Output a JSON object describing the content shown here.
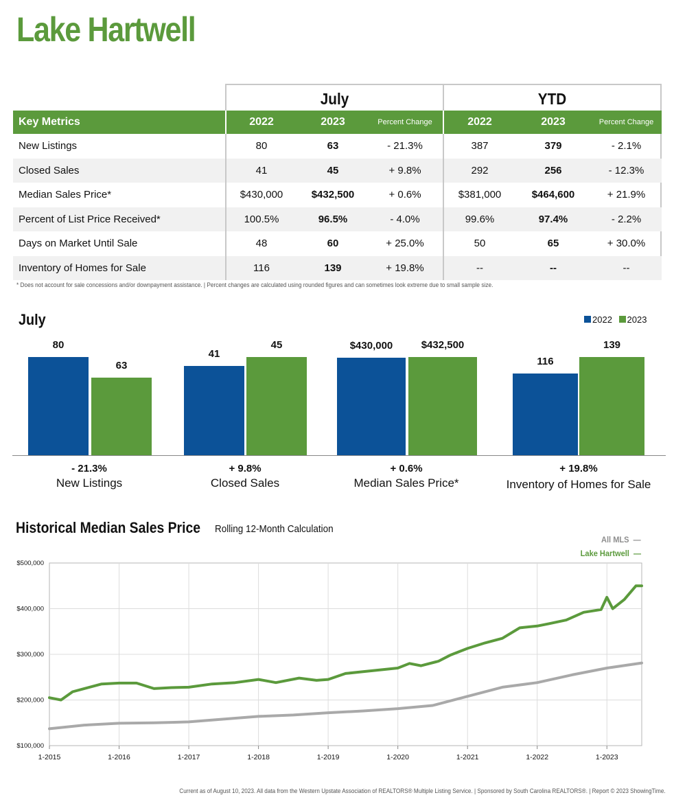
{
  "title": "Lake Hartwell",
  "table": {
    "group_july": "July",
    "group_ytd": "YTD",
    "key_metrics_label": "Key Metrics",
    "col_2022": "2022",
    "col_2023": "2023",
    "col_pct": "Percent Change",
    "rows": [
      {
        "metric": "New Listings",
        "j22": "80",
        "j23": "63",
        "jpct": "- 21.3%",
        "y22": "387",
        "y23": "379",
        "ypct": "- 2.1%"
      },
      {
        "metric": "Closed Sales",
        "j22": "41",
        "j23": "45",
        "jpct": "+ 9.8%",
        "y22": "292",
        "y23": "256",
        "ypct": "- 12.3%"
      },
      {
        "metric": "Median Sales Price*",
        "j22": "$430,000",
        "j23": "$432,500",
        "jpct": "+ 0.6%",
        "y22": "$381,000",
        "y23": "$464,600",
        "ypct": "+ 21.9%"
      },
      {
        "metric": "Percent of List Price Received*",
        "j22": "100.5%",
        "j23": "96.5%",
        "jpct": "- 4.0%",
        "y22": "99.6%",
        "y23": "97.4%",
        "ypct": "- 2.2%"
      },
      {
        "metric": "Days on Market Until Sale",
        "j22": "48",
        "j23": "60",
        "jpct": "+ 25.0%",
        "y22": "50",
        "y23": "65",
        "ypct": "+ 30.0%"
      },
      {
        "metric": "Inventory of Homes for Sale",
        "j22": "116",
        "j23": "139",
        "jpct": "+ 19.8%",
        "y22": "--",
        "y23": "--",
        "ypct": "--"
      }
    ],
    "footnote": "* Does not account for sale concessions and/or downpayment assistance.  |  Percent changes are calculated using rounded figures and can sometimes look extreme due to small sample size."
  },
  "chart_data": [
    {
      "type": "bar",
      "title": "July",
      "legend": [
        "2022",
        "2023"
      ],
      "legend_position": "top-right",
      "colors": {
        "2022": "#0c5298",
        "2023": "#5b9a3c"
      },
      "categories": [
        "New Listings",
        "Closed Sales",
        "Median Sales Price*",
        "Inventory of Homes for Sale"
      ],
      "pct_changes": [
        "- 21.3%",
        "+ 9.8%",
        "+ 0.6%",
        "+ 19.8%"
      ],
      "series": [
        {
          "name": "2022",
          "values": [
            80,
            41,
            430000,
            116
          ],
          "labels": [
            "80",
            "41",
            "$430,000",
            "116"
          ]
        },
        {
          "name": "2023",
          "values": [
            63,
            45,
            432500,
            139
          ],
          "labels": [
            "63",
            "45",
            "$432,500",
            "139"
          ]
        }
      ]
    },
    {
      "type": "line",
      "title": "Historical Median Sales Price",
      "subtitle": "Rolling 12-Month Calculation",
      "x_tick_labels": [
        "1-2015",
        "1-2016",
        "1-2017",
        "1-2018",
        "1-2019",
        "1-2020",
        "1-2021",
        "1-2022",
        "1-2023"
      ],
      "y_tick_labels": [
        "$100,000",
        "$200,000",
        "$300,000",
        "$400,000",
        "$500,000"
      ],
      "ylim": [
        100000,
        500000
      ],
      "xlim": [
        "2015-01",
        "2023-07"
      ],
      "legend_position": "top-right",
      "grid": true,
      "series": [
        {
          "name": "All MLS",
          "color": "#a9a9a9",
          "points": [
            [
              "2015-01",
              137000
            ],
            [
              "2015-07",
              145000
            ],
            [
              "2016-01",
              149000
            ],
            [
              "2016-07",
              150000
            ],
            [
              "2017-01",
              152000
            ],
            [
              "2017-07",
              158000
            ],
            [
              "2018-01",
              164000
            ],
            [
              "2018-07",
              167000
            ],
            [
              "2019-01",
              172000
            ],
            [
              "2019-07",
              176000
            ],
            [
              "2020-01",
              181000
            ],
            [
              "2020-07",
              188000
            ],
            [
              "2021-01",
              208000
            ],
            [
              "2021-07",
              228000
            ],
            [
              "2022-01",
              238000
            ],
            [
              "2022-07",
              255000
            ],
            [
              "2023-01",
              270000
            ],
            [
              "2023-07",
              281000
            ]
          ]
        },
        {
          "name": "Lake Hartwell",
          "color": "#5b9a3c",
          "points": [
            [
              "2015-01",
              205000
            ],
            [
              "2015-03",
              200000
            ],
            [
              "2015-05",
              218000
            ],
            [
              "2015-07",
              225000
            ],
            [
              "2015-10",
              235000
            ],
            [
              "2016-01",
              237000
            ],
            [
              "2016-04",
              237000
            ],
            [
              "2016-07",
              225000
            ],
            [
              "2016-10",
              227000
            ],
            [
              "2017-01",
              228000
            ],
            [
              "2017-05",
              235000
            ],
            [
              "2017-09",
              238000
            ],
            [
              "2018-01",
              245000
            ],
            [
              "2018-04",
              238000
            ],
            [
              "2018-08",
              248000
            ],
            [
              "2018-11",
              243000
            ],
            [
              "2019-01",
              245000
            ],
            [
              "2019-04",
              258000
            ],
            [
              "2019-07",
              262000
            ],
            [
              "2019-10",
              266000
            ],
            [
              "2020-01",
              270000
            ],
            [
              "2020-03",
              280000
            ],
            [
              "2020-05",
              275000
            ],
            [
              "2020-08",
              285000
            ],
            [
              "2020-10",
              298000
            ],
            [
              "2021-01",
              313000
            ],
            [
              "2021-04",
              325000
            ],
            [
              "2021-07",
              335000
            ],
            [
              "2021-10",
              358000
            ],
            [
              "2022-01",
              362000
            ],
            [
              "2022-03",
              367000
            ],
            [
              "2022-06",
              375000
            ],
            [
              "2022-09",
              392000
            ],
            [
              "2022-12",
              398000
            ],
            [
              "2023-01",
              425000
            ],
            [
              "2023-02",
              400000
            ],
            [
              "2023-04",
              420000
            ],
            [
              "2023-06",
              450000
            ],
            [
              "2023-07",
              450000
            ]
          ]
        }
      ]
    }
  ],
  "footer": "Current as of August 10, 2023. All data from the Western Upstate Association of REALTORS® Multiple Listing Service.  |  Sponsored by South Carolina REALTORS®.  |  Report © 2023 ShowingTime."
}
